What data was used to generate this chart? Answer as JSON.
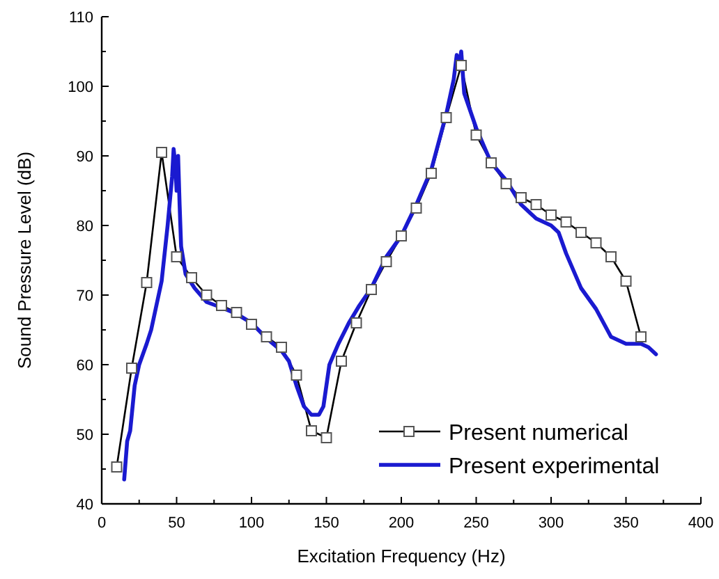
{
  "chart_data": {
    "type": "line",
    "xlabel": "Excitation Frequency (Hz)",
    "ylabel": "Sound Pressure Level (dB)",
    "xlim": [
      0,
      400
    ],
    "ylim": [
      40,
      110
    ],
    "xticks": [
      0,
      {
        "value": 25,
        "label": null
      },
      50,
      {
        "value": 75,
        "label": null
      },
      100,
      {
        "value": 125,
        "label": null
      },
      150,
      {
        "value": 175,
        "label": null
      },
      200,
      {
        "value": 225,
        "label": null
      },
      250,
      {
        "value": 275,
        "label": null
      },
      300,
      {
        "value": 325,
        "label": null
      },
      350,
      {
        "value": 375,
        "label": null
      },
      400
    ],
    "yticks": [
      40,
      {
        "value": 45,
        "label": null
      },
      50,
      {
        "value": 55,
        "label": null
      },
      60,
      {
        "value": 65,
        "label": null
      },
      70,
      {
        "value": 75,
        "label": null
      },
      80,
      {
        "value": 85,
        "label": null
      },
      90,
      {
        "value": 95,
        "label": null
      },
      100,
      {
        "value": 105,
        "label": null
      },
      110
    ],
    "grid": false,
    "legend": "bottom right",
    "line_style": "solid",
    "series": [
      {
        "name": "Present numerical",
        "color": "#000000",
        "marker": "square",
        "x": [
          10,
          20,
          30,
          40,
          50,
          60,
          70,
          80,
          90,
          100,
          110,
          120,
          130,
          140,
          150,
          160,
          170,
          180,
          190,
          200,
          210,
          220,
          230,
          240,
          250,
          260,
          270,
          280,
          290,
          300,
          310,
          320,
          330,
          340,
          350,
          360
        ],
        "values": [
          45.3,
          59.5,
          71.8,
          90.5,
          75.5,
          72.5,
          70,
          68.5,
          67.5,
          65.8,
          64,
          62.5,
          58.5,
          50.5,
          49.5,
          60.5,
          66,
          70.8,
          74.8,
          78.5,
          82.5,
          87.5,
          95.5,
          103,
          93,
          89,
          86,
          84,
          83,
          81.5,
          80.5,
          79,
          77.5,
          75.5,
          72,
          64
        ]
      },
      {
        "name": "Present experimental",
        "color": "#1a1ad0",
        "marker": "none",
        "x": [
          15,
          17,
          19,
          22,
          25,
          30,
          33,
          36,
          40,
          44,
          47,
          48,
          49,
          50,
          51,
          52,
          53,
          56,
          62,
          70,
          80,
          90,
          100,
          110,
          120,
          125,
          130,
          135,
          140,
          145,
          148,
          152,
          158,
          165,
          172,
          180,
          190,
          200,
          210,
          220,
          230,
          235,
          237,
          239,
          240,
          242,
          250,
          260,
          270,
          280,
          290,
          300,
          305,
          310,
          320,
          330,
          340,
          345,
          350,
          360,
          365,
          370
        ],
        "values": [
          43.5,
          49,
          50.5,
          57,
          60,
          63,
          65,
          68,
          72,
          80,
          87,
          91,
          89,
          85,
          90,
          83,
          77,
          73,
          71,
          69,
          68.2,
          67.3,
          66,
          63.8,
          62,
          60.5,
          57,
          54,
          52.8,
          52.8,
          54,
          60,
          63,
          66,
          68.5,
          71,
          75.5,
          78.5,
          83,
          88,
          96,
          101,
          104.5,
          103.5,
          105,
          99,
          94,
          89,
          86.5,
          83,
          81,
          80,
          79,
          76,
          71,
          68,
          64,
          63.5,
          63,
          63,
          62.5,
          61.5
        ]
      }
    ]
  }
}
